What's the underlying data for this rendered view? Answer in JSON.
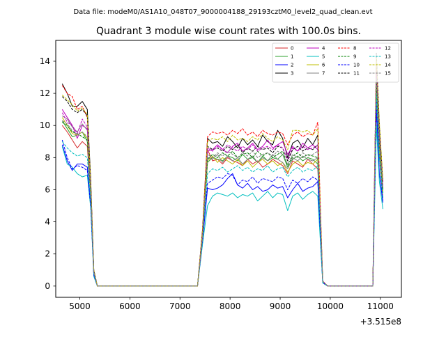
{
  "figure": {
    "suptitle": "Data file: modeM0/AS1A10_048T07_9000004188_29193cztM0_level2_quad_clean.evt"
  },
  "chart_data": {
    "type": "line",
    "title": "Quadrant 3 module wise count rates with 100.0s bins.",
    "xlabel": "",
    "ylabel": "",
    "x_offset_label": "+3.515e8",
    "xlim": [
      4520,
      11420
    ],
    "ylim": [
      -0.7,
      15.3
    ],
    "xticks": [
      5000,
      6000,
      7000,
      8000,
      9000,
      10000,
      11000
    ],
    "yticks": [
      0,
      2,
      4,
      6,
      8,
      10,
      12,
      14
    ],
    "grid": false,
    "legend_placement": "top-right",
    "x": [
      4650,
      4750,
      4850,
      4950,
      5050,
      5150,
      5220,
      5280,
      5350,
      5450,
      7350,
      7450,
      7550,
      7650,
      7750,
      7850,
      7950,
      8050,
      8150,
      8250,
      8350,
      8450,
      8550,
      8650,
      8750,
      8850,
      8950,
      9050,
      9150,
      9250,
      9350,
      9450,
      9550,
      9650,
      9750,
      9850,
      9950,
      10850,
      10920,
      10980,
      11050
    ],
    "series": [
      {
        "name": "0",
        "color": "#d62728",
        "dash": "solid",
        "values": [
          10.0,
          9.6,
          9.1,
          8.6,
          9.0,
          8.7,
          5.5,
          0.8,
          0.0,
          0.0,
          0.0,
          3.0,
          8.5,
          7.8,
          7.9,
          7.6,
          8.0,
          7.8,
          7.7,
          7.5,
          7.9,
          7.6,
          7.8,
          7.4,
          7.6,
          7.9,
          7.7,
          7.5,
          7.0,
          7.8,
          7.6,
          7.4,
          7.9,
          7.6,
          7.3,
          0.3,
          0.0,
          0.0,
          12.0,
          8.0,
          5.5
        ]
      },
      {
        "name": "1",
        "color": "#2ca02c",
        "dash": "solid",
        "values": [
          10.3,
          9.8,
          9.3,
          9.4,
          9.6,
          9.0,
          5.8,
          0.8,
          0.0,
          0.0,
          0.0,
          3.1,
          7.7,
          8.0,
          7.9,
          7.8,
          8.1,
          8.0,
          7.8,
          8.2,
          7.9,
          8.0,
          7.7,
          8.1,
          7.8,
          8.0,
          7.9,
          8.2,
          7.4,
          7.9,
          8.1,
          7.8,
          8.0,
          7.9,
          7.6,
          0.3,
          0.0,
          0.0,
          12.5,
          8.5,
          5.8
        ]
      },
      {
        "name": "2",
        "color": "#0000ff",
        "dash": "solid",
        "values": [
          8.8,
          7.8,
          7.2,
          7.6,
          7.6,
          7.4,
          5.0,
          0.7,
          0.0,
          0.0,
          0.0,
          2.8,
          6.1,
          6.0,
          6.1,
          6.3,
          6.7,
          7.0,
          6.3,
          6.1,
          6.4,
          6.0,
          6.2,
          5.9,
          6.0,
          6.3,
          6.1,
          6.2,
          5.5,
          6.0,
          6.4,
          5.9,
          6.1,
          6.2,
          6.5,
          0.2,
          0.0,
          0.0,
          11.0,
          7.0,
          5.2
        ]
      },
      {
        "name": "3",
        "color": "#000000",
        "dash": "solid",
        "values": [
          12.6,
          12.0,
          11.2,
          11.2,
          11.5,
          11.0,
          6.5,
          1.0,
          0.0,
          0.0,
          0.0,
          3.5,
          9.2,
          8.9,
          9.0,
          8.7,
          9.3,
          9.0,
          8.6,
          9.2,
          8.8,
          9.1,
          8.7,
          9.4,
          9.0,
          8.8,
          9.7,
          9.2,
          8.0,
          8.9,
          9.1,
          8.6,
          9.2,
          8.8,
          9.4,
          0.3,
          0.0,
          0.0,
          13.0,
          9.0,
          6.0
        ]
      },
      {
        "name": "4",
        "color": "#bf00bf",
        "dash": "solid",
        "values": [
          11.0,
          10.5,
          10.0,
          9.2,
          10.0,
          9.8,
          6.0,
          0.9,
          0.0,
          0.0,
          0.0,
          3.2,
          8.4,
          8.5,
          8.8,
          8.5,
          8.3,
          8.7,
          8.9,
          8.4,
          8.6,
          8.9,
          8.5,
          8.7,
          9.1,
          8.6,
          8.8,
          9.0,
          8.2,
          8.7,
          8.4,
          8.9,
          8.6,
          8.8,
          8.5,
          0.3,
          0.0,
          0.0,
          13.5,
          9.5,
          6.2
        ]
      },
      {
        "name": "5",
        "color": "#00bfbf",
        "dash": "solid",
        "values": [
          8.7,
          7.6,
          7.4,
          7.0,
          6.8,
          6.9,
          4.8,
          0.6,
          0.0,
          0.0,
          0.0,
          2.6,
          5.0,
          5.6,
          5.8,
          5.7,
          5.6,
          5.8,
          5.5,
          5.7,
          5.6,
          5.8,
          5.3,
          5.6,
          5.9,
          5.5,
          5.8,
          5.7,
          4.7,
          5.6,
          5.8,
          5.4,
          5.7,
          5.9,
          5.6,
          0.2,
          0.0,
          0.0,
          10.0,
          6.5,
          4.8
        ]
      },
      {
        "name": "6",
        "color": "#bfbf00",
        "dash": "solid",
        "values": [
          10.5,
          10.0,
          9.5,
          9.4,
          9.6,
          9.2,
          5.7,
          0.9,
          0.0,
          0.0,
          0.0,
          3.0,
          7.8,
          8.1,
          7.7,
          8.0,
          7.8,
          7.6,
          7.9,
          7.5,
          7.8,
          7.4,
          7.7,
          7.9,
          7.6,
          7.8,
          7.5,
          7.7,
          7.1,
          7.6,
          7.8,
          7.5,
          7.7,
          7.6,
          7.9,
          0.3,
          0.0,
          0.0,
          13.0,
          8.5,
          5.9
        ]
      },
      {
        "name": "7",
        "color": "#808080",
        "dash": "solid",
        "values": [
          10.6,
          10.4,
          9.9,
          9.6,
          10.1,
          9.7,
          6.0,
          0.9,
          0.0,
          0.0,
          0.0,
          3.1,
          8.0,
          7.9,
          8.2,
          7.7,
          8.1,
          7.8,
          8.0,
          7.6,
          7.9,
          8.1,
          7.7,
          8.0,
          7.8,
          8.2,
          7.9,
          7.7,
          7.3,
          8.0,
          7.8,
          8.1,
          7.9,
          7.8,
          8.0,
          0.3,
          0.0,
          0.0,
          13.2,
          9.0,
          6.0
        ]
      },
      {
        "name": "8",
        "color": "#ff0000",
        "dash": "dashed",
        "values": [
          12.5,
          12.0,
          11.8,
          11.0,
          11.2,
          10.5,
          6.3,
          1.0,
          0.0,
          0.0,
          0.0,
          3.5,
          9.3,
          9.6,
          9.5,
          9.6,
          9.4,
          9.7,
          9.5,
          9.8,
          9.4,
          9.6,
          9.3,
          9.7,
          9.5,
          9.4,
          9.6,
          9.5,
          8.8,
          9.4,
          9.6,
          9.3,
          9.5,
          9.4,
          10.2,
          0.3,
          0.0,
          0.0,
          14.0,
          10.0,
          6.5
        ]
      },
      {
        "name": "9",
        "color": "#008000",
        "dash": "dashed",
        "values": [
          10.2,
          10.0,
          9.6,
          9.5,
          9.3,
          9.1,
          5.8,
          0.9,
          0.0,
          0.0,
          0.0,
          3.0,
          7.9,
          8.2,
          8.0,
          8.3,
          8.1,
          8.4,
          8.0,
          8.2,
          8.3,
          8.0,
          8.4,
          8.1,
          8.3,
          8.0,
          8.2,
          8.4,
          7.5,
          8.1,
          8.3,
          8.0,
          8.2,
          8.1,
          8.0,
          0.3,
          0.0,
          0.0,
          12.8,
          9.0,
          6.0
        ]
      },
      {
        "name": "10",
        "color": "#0000ff",
        "dash": "dashed",
        "values": [
          9.1,
          8.0,
          7.3,
          7.5,
          7.4,
          7.2,
          4.9,
          0.7,
          0.0,
          0.0,
          0.0,
          2.8,
          6.4,
          6.6,
          6.8,
          6.7,
          7.0,
          6.9,
          6.3,
          6.6,
          6.5,
          6.8,
          6.4,
          6.7,
          6.6,
          6.5,
          6.8,
          6.7,
          6.0,
          6.6,
          6.4,
          6.7,
          6.5,
          6.8,
          6.6,
          0.2,
          0.0,
          0.0,
          11.5,
          8.0,
          5.3
        ]
      },
      {
        "name": "11",
        "color": "#000000",
        "dash": "dashed",
        "values": [
          11.8,
          11.5,
          11.0,
          10.8,
          11.0,
          10.6,
          6.2,
          1.0,
          0.0,
          0.0,
          0.0,
          3.3,
          8.7,
          8.5,
          8.6,
          8.4,
          8.7,
          8.5,
          8.8,
          8.3,
          8.6,
          8.4,
          8.7,
          8.5,
          8.6,
          8.3,
          8.7,
          8.6,
          7.8,
          8.5,
          8.7,
          8.4,
          8.6,
          8.5,
          8.8,
          0.3,
          0.0,
          0.0,
          14.5,
          10.0,
          6.5
        ]
      },
      {
        "name": "12",
        "color": "#bf00bf",
        "dash": "dashed",
        "values": [
          10.8,
          10.2,
          10.0,
          9.5,
          10.4,
          9.9,
          6.0,
          0.9,
          0.0,
          0.0,
          0.0,
          3.2,
          8.6,
          8.4,
          8.7,
          8.5,
          8.8,
          8.6,
          8.4,
          8.7,
          8.5,
          8.8,
          8.4,
          8.6,
          8.7,
          8.5,
          8.8,
          8.6,
          7.9,
          8.6,
          8.4,
          8.7,
          8.5,
          8.6,
          8.8,
          0.3,
          0.0,
          0.0,
          13.8,
          9.5,
          6.3
        ]
      },
      {
        "name": "13",
        "color": "#00bfbf",
        "dash": "dashed",
        "values": [
          9.0,
          8.6,
          8.3,
          8.1,
          8.2,
          8.0,
          5.3,
          0.8,
          0.0,
          0.0,
          0.0,
          2.9,
          7.0,
          7.3,
          7.2,
          7.4,
          7.1,
          7.3,
          7.5,
          7.2,
          7.4,
          7.1,
          7.3,
          7.2,
          7.5,
          7.1,
          7.3,
          7.4,
          6.8,
          7.2,
          7.4,
          7.1,
          7.3,
          7.2,
          7.5,
          0.2,
          0.0,
          0.0,
          12.0,
          8.0,
          5.5
        ]
      },
      {
        "name": "14",
        "color": "#bfbf00",
        "dash": "dashed",
        "values": [
          11.9,
          11.6,
          11.3,
          10.9,
          11.1,
          10.7,
          6.3,
          1.0,
          0.0,
          0.0,
          0.0,
          3.4,
          9.0,
          9.2,
          9.1,
          9.3,
          9.0,
          9.4,
          9.1,
          9.2,
          9.0,
          9.3,
          9.1,
          9.5,
          9.2,
          9.0,
          9.3,
          9.1,
          8.5,
          9.7,
          9.7,
          9.6,
          9.7,
          9.4,
          9.8,
          0.3,
          0.0,
          0.0,
          14.2,
          10.2,
          6.6
        ]
      },
      {
        "name": "15",
        "color": "#808080",
        "dash": "dashed",
        "values": [
          10.3,
          10.1,
          9.7,
          9.4,
          9.6,
          9.3,
          5.9,
          0.9,
          0.0,
          0.0,
          0.0,
          3.0,
          8.2,
          8.0,
          8.3,
          8.1,
          8.4,
          8.2,
          8.0,
          8.3,
          8.1,
          8.4,
          8.0,
          8.2,
          8.3,
          8.1,
          8.4,
          8.2,
          7.6,
          8.2,
          8.0,
          8.3,
          8.1,
          8.2,
          8.4,
          0.3,
          0.0,
          0.0,
          13.0,
          9.2,
          6.1
        ]
      }
    ]
  }
}
